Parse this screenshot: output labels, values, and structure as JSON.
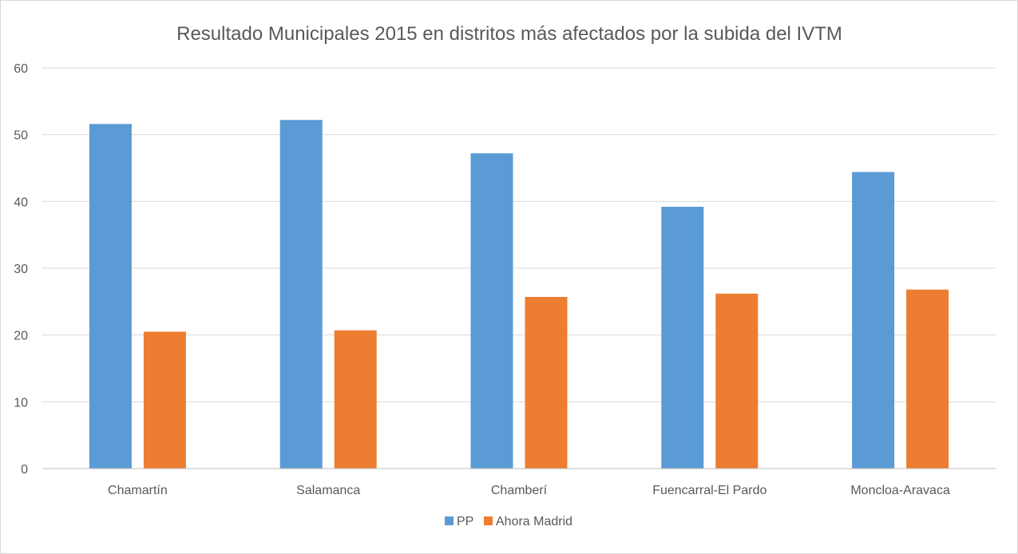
{
  "chart_data": {
    "type": "bar",
    "title": "Resultado Municipales 2015 en distritos más afectados por la subida del IVTM",
    "xlabel": "",
    "ylabel": "",
    "categories": [
      "Chamartín",
      "Salamanca",
      "Chamberí",
      "Fuencarral-El Pardo",
      "Moncloa-Aravaca"
    ],
    "series": [
      {
        "name": "PP",
        "color": "#5b9bd5",
        "values": [
          51.6,
          52.2,
          47.2,
          39.2,
          44.4
        ]
      },
      {
        "name": "Ahora Madrid",
        "color": "#ed7d31",
        "values": [
          20.5,
          20.7,
          25.7,
          26.2,
          26.8
        ]
      }
    ],
    "ylim": [
      0,
      60
    ],
    "yticks": [
      "0",
      "10",
      "20",
      "30",
      "40",
      "50",
      "60"
    ],
    "grid": true,
    "legend_position": "bottom"
  }
}
